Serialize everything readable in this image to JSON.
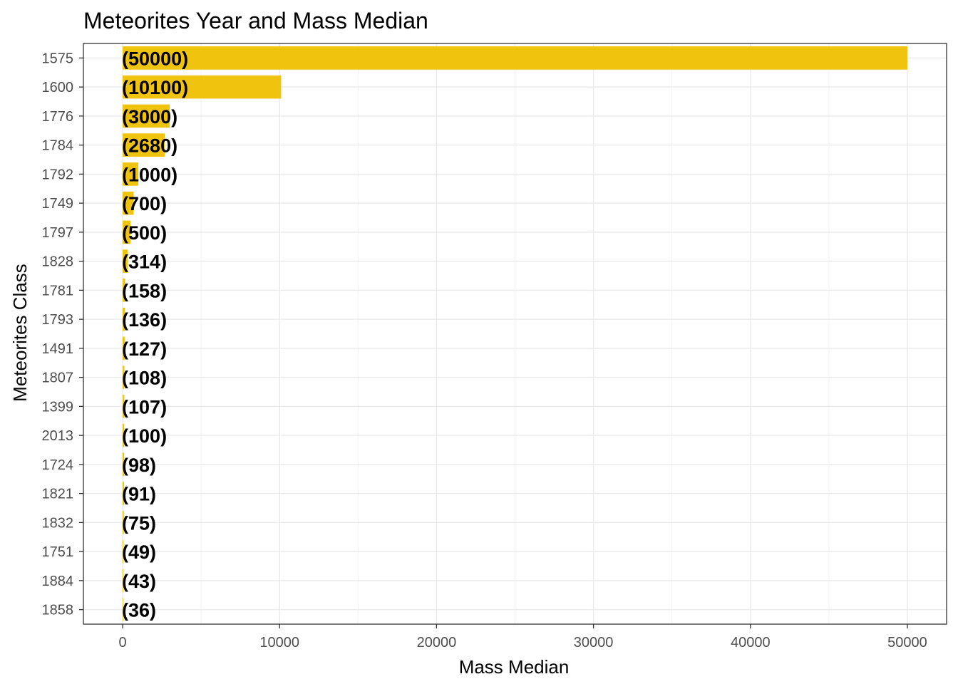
{
  "chart_data": {
    "type": "bar",
    "orientation": "horizontal",
    "title": "Meteorites Year and Mass Median",
    "xlabel": "Mass Median",
    "ylabel": "Meteorites Class",
    "categories": [
      "1575",
      "1600",
      "1776",
      "1784",
      "1792",
      "1749",
      "1797",
      "1828",
      "1781",
      "1793",
      "1491",
      "1807",
      "1399",
      "2013",
      "1724",
      "1821",
      "1832",
      "1751",
      "1884",
      "1858"
    ],
    "values": [
      50000,
      10100,
      3000,
      2680,
      1000,
      700,
      500,
      314,
      158,
      136,
      127,
      108,
      107,
      100,
      98,
      91,
      75,
      49,
      43,
      36
    ],
    "data_labels": [
      "(50000)",
      "(10100)",
      "(3000)",
      "(2680)",
      "(1000)",
      "(700)",
      "(500)",
      "(314)",
      "(158)",
      "(136)",
      "(127)",
      "(108)",
      "(107)",
      "(100)",
      "(98)",
      "(91)",
      "(75)",
      "(49)",
      "(43)",
      "(36)"
    ],
    "x_ticks": [
      0,
      10000,
      20000,
      30000,
      40000,
      50000
    ],
    "xlim": [
      -2500,
      52500
    ],
    "bar_color": "#f0c30f",
    "grid": true
  }
}
